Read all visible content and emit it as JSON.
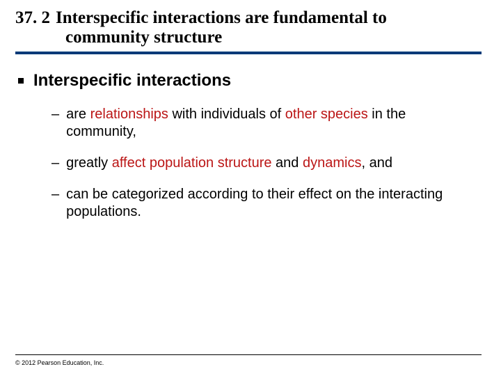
{
  "heading": {
    "number": "37. 2",
    "line1": "Interspecific interactions are fundamental to",
    "line2": "community structure"
  },
  "bullet_main": "Interspecific interactions",
  "subs": [
    {
      "pre": "are ",
      "hl1": "relationships",
      "mid1": " with individuals of ",
      "hl2": "other species",
      "mid2": " in the community,"
    },
    {
      "pre": "greatly ",
      "hl1": "affect population structure",
      "mid1": " and ",
      "hl2": "dynamics",
      "mid2": ", and"
    },
    {
      "pre": "can be categorized according to their effect on the interacting populations.",
      "hl1": "",
      "mid1": "",
      "hl2": "",
      "mid2": ""
    }
  ],
  "copyright": "© 2012 Pearson Education, Inc.",
  "colors": {
    "rule": "#003a78",
    "highlight": "#bb1616"
  }
}
